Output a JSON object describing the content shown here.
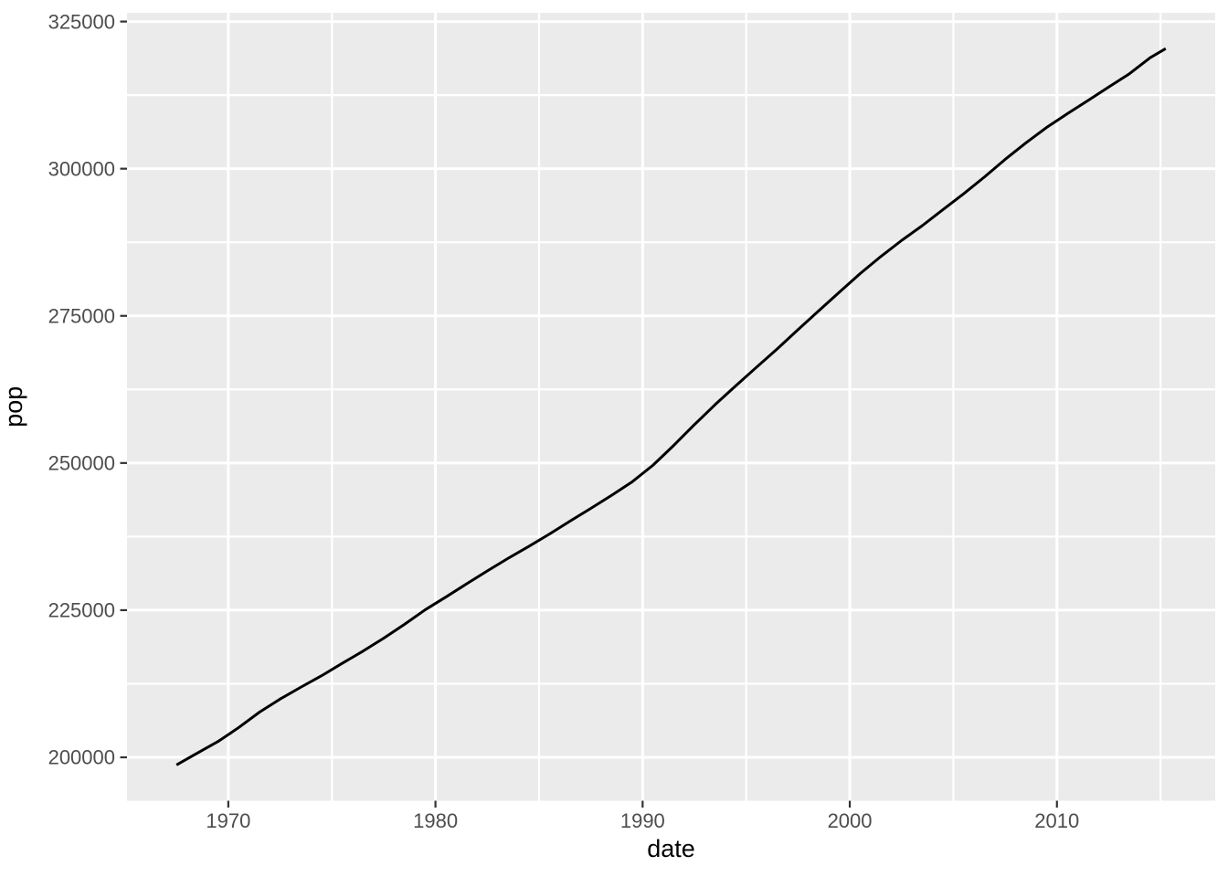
{
  "chart_data": {
    "type": "line",
    "title": "",
    "xlabel": "date",
    "ylabel": "pop",
    "x_major_ticks": [
      1970,
      1980,
      1990,
      2000,
      2010
    ],
    "x_major_tick_labels": [
      "1970",
      "1980",
      "1990",
      "2000",
      "2010"
    ],
    "x_minor_gridlines": [
      1975,
      1985,
      1995,
      2005,
      2015
    ],
    "y_major_ticks": [
      200000,
      225000,
      250000,
      275000,
      300000,
      325000
    ],
    "y_major_tick_labels": [
      "200000",
      "225000",
      "250000",
      "275000",
      "300000",
      "325000"
    ],
    "y_minor_gridlines": [
      212500,
      237500,
      262500,
      287500,
      312500
    ],
    "xlim": [
      1965.11,
      2017.64
    ],
    "ylim": [
      192627,
      326487
    ],
    "grid": true,
    "legend_position": "none",
    "series": [
      {
        "name": "pop",
        "color": "#000000",
        "points": [
          [
            1967.5,
            198712
          ],
          [
            1968.5,
            200706
          ],
          [
            1969.5,
            202677
          ],
          [
            1970.5,
            205052
          ],
          [
            1971.5,
            207661
          ],
          [
            1972.5,
            209896
          ],
          [
            1973.5,
            211909
          ],
          [
            1974.5,
            213854
          ],
          [
            1975.5,
            215973
          ],
          [
            1976.5,
            218035
          ],
          [
            1977.5,
            220239
          ],
          [
            1978.5,
            222585
          ],
          [
            1979.5,
            225055
          ],
          [
            1980.5,
            227225
          ],
          [
            1981.5,
            229466
          ],
          [
            1982.5,
            231664
          ],
          [
            1983.5,
            233792
          ],
          [
            1984.5,
            235825
          ],
          [
            1985.5,
            237924
          ],
          [
            1986.5,
            240133
          ],
          [
            1987.5,
            242289
          ],
          [
            1988.5,
            244499
          ],
          [
            1989.5,
            246819
          ],
          [
            1990.5,
            249623
          ],
          [
            1991.5,
            252981
          ],
          [
            1992.5,
            256514
          ],
          [
            1993.5,
            259919
          ],
          [
            1994.5,
            263126
          ],
          [
            1995.5,
            266278
          ],
          [
            1996.5,
            269394
          ],
          [
            1997.5,
            272657
          ],
          [
            1998.5,
            275854
          ],
          [
            1999.5,
            279040
          ],
          [
            2000.5,
            282172
          ],
          [
            2001.5,
            285082
          ],
          [
            2002.5,
            287804
          ],
          [
            2003.5,
            290326
          ],
          [
            2004.5,
            293046
          ],
          [
            2005.5,
            295753
          ],
          [
            2006.5,
            298593
          ],
          [
            2007.5,
            301580
          ],
          [
            2008.5,
            304375
          ],
          [
            2009.5,
            307007
          ],
          [
            2010.5,
            309330
          ],
          [
            2011.5,
            311583
          ],
          [
            2012.5,
            313874
          ],
          [
            2013.5,
            316129
          ],
          [
            2014.5,
            318857
          ],
          [
            2015.25,
            320402
          ]
        ]
      }
    ],
    "theme": {
      "panel_background": "#EBEBEB",
      "outer_background": "#FFFFFF",
      "grid_color": "#FFFFFF",
      "line_color": "#000000",
      "tick_label_color": "#4D4D4D",
      "tick_mark_color": "#333333",
      "axis_title_color": "#000000"
    }
  }
}
